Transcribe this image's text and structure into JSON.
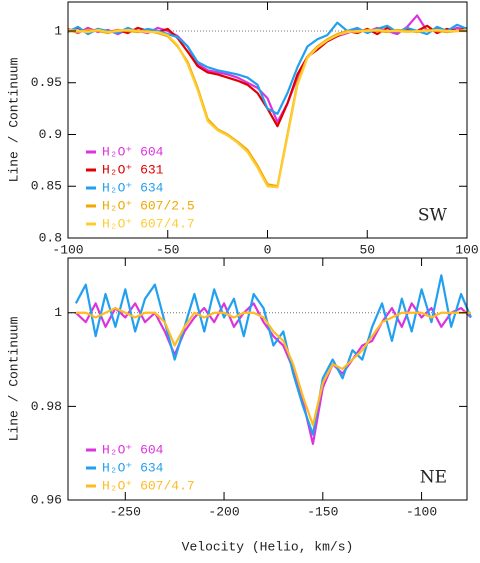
{
  "chart_data": [
    {
      "type": "line",
      "annotation": "SW",
      "ylabel": "Line / Continuum",
      "x": [
        -100,
        -95,
        -90,
        -85,
        -80,
        -75,
        -70,
        -65,
        -60,
        -55,
        -50,
        -45,
        -40,
        -35,
        -30,
        -25,
        -20,
        -15,
        -10,
        -5,
        0,
        5,
        10,
        15,
        20,
        25,
        30,
        35,
        40,
        45,
        50,
        55,
        60,
        65,
        70,
        75,
        80,
        85,
        90,
        95,
        100
      ],
      "series": [
        {
          "name": "H₂O⁺ 604",
          "color": "#dd33dd",
          "values": [
            1.002,
            0.998,
            1.003,
            0.999,
            1.001,
            0.997,
            1.002,
            1.0,
            0.998,
            1.003,
            1.0,
            0.995,
            0.985,
            0.968,
            0.962,
            0.96,
            0.958,
            0.955,
            0.95,
            0.945,
            0.935,
            0.912,
            0.93,
            0.955,
            0.975,
            0.985,
            0.99,
            0.995,
            0.998,
            1.002,
            0.999,
            1.003,
            1.0,
            0.997,
            1.004,
            1.015,
            1.0,
            1.002,
            0.999,
            1.003,
            1.001
          ]
        },
        {
          "name": "H₂O⁺ 631",
          "color": "#e00000",
          "values": [
            1.0,
            1.003,
            0.998,
            1.002,
            0.999,
            1.001,
            0.998,
            1.003,
            1.0,
            0.999,
            1.002,
            0.993,
            0.98,
            0.966,
            0.96,
            0.958,
            0.955,
            0.952,
            0.948,
            0.94,
            0.925,
            0.908,
            0.93,
            0.958,
            0.975,
            0.982,
            0.99,
            0.995,
            1.0,
            0.998,
            1.002,
            0.997,
            1.003,
            0.999,
            1.001,
            1.0,
            1.005,
            0.998,
            1.002,
            1.0,
            1.003
          ]
        },
        {
          "name": "H₂O⁺ 634",
          "color": "#22a0f0",
          "values": [
            0.999,
            1.004,
            0.997,
            1.002,
            1.0,
            0.998,
            1.003,
            0.999,
            1.002,
            1.0,
            0.997,
            0.994,
            0.985,
            0.97,
            0.965,
            0.962,
            0.96,
            0.958,
            0.955,
            0.948,
            0.925,
            0.92,
            0.94,
            0.965,
            0.985,
            0.992,
            0.996,
            1.008,
            1.0,
            1.003,
            0.998,
            1.002,
            1.005,
            0.999,
            1.003,
            1.0,
            0.997,
            1.004,
            1.0,
            1.006,
            1.002
          ]
        },
        {
          "name": "H₂O⁺ 607/2.5",
          "color": "#f0a800",
          "values": [
            1.0,
            0.999,
            1.001,
            1.0,
            0.998,
            1.001,
            1.0,
            0.999,
            1.0,
            0.998,
            0.995,
            0.985,
            0.97,
            0.945,
            0.915,
            0.905,
            0.9,
            0.893,
            0.885,
            0.87,
            0.852,
            0.85,
            0.9,
            0.95,
            0.975,
            0.985,
            0.992,
            0.997,
            1.0,
            0.999,
            1.001,
            1.0,
            0.999,
            1.001,
            1.0,
            0.999,
            1.001,
            1.0,
            0.999,
            1.0,
            1.0
          ]
        },
        {
          "name": "H₂O⁺ 607/4.7",
          "color": "#ffcc33",
          "values": [
            1.001,
            1.0,
            0.999,
            1.001,
            0.999,
            1.0,
            1.001,
            1.0,
            0.999,
            0.999,
            0.996,
            0.986,
            0.968,
            0.943,
            0.913,
            0.904,
            0.899,
            0.892,
            0.883,
            0.868,
            0.85,
            0.849,
            0.898,
            0.948,
            0.974,
            0.984,
            0.991,
            0.996,
            0.999,
            1.0,
            1.0,
            1.001,
            1.0,
            1.0,
            0.999,
            1.0,
            1.0,
            1.001,
            1.0,
            1.0,
            1.001
          ]
        }
      ],
      "xlim": [
        -100,
        100
      ],
      "xticks": [
        -100,
        -50,
        0,
        50,
        100
      ],
      "ylim": [
        0.8,
        1.028
      ],
      "yticks": [
        0.8,
        0.85,
        0.9,
        0.95,
        1
      ],
      "hline": 1
    },
    {
      "type": "line",
      "annotation": "NE",
      "ylabel": "Line / Continuum",
      "xlabel": "Velocity (Helio, km/s)",
      "x": [
        -275,
        -270,
        -265,
        -260,
        -255,
        -250,
        -245,
        -240,
        -235,
        -230,
        -225,
        -220,
        -215,
        -210,
        -205,
        -200,
        -195,
        -190,
        -185,
        -180,
        -175,
        -170,
        -165,
        -160,
        -155,
        -150,
        -145,
        -140,
        -135,
        -130,
        -125,
        -120,
        -115,
        -110,
        -105,
        -100,
        -95,
        -90,
        -85,
        -80,
        -75
      ],
      "series": [
        {
          "name": "H₂O⁺ 604",
          "color": "#dd33dd",
          "values": [
            1.0,
            0.998,
            1.002,
            0.997,
            1.001,
            0.999,
            1.002,
            0.998,
            1.0,
            0.996,
            0.991,
            0.996,
            0.999,
            1.001,
            0.998,
            1.002,
            0.997,
            1.0,
            1.002,
            0.998,
            0.995,
            0.993,
            0.988,
            0.981,
            0.972,
            0.984,
            0.989,
            0.987,
            0.99,
            0.993,
            0.994,
            0.998,
            1.001,
            0.997,
            1.002,
            0.999,
            1.001,
            0.997,
            1.0,
            1.001,
            0.999
          ]
        },
        {
          "name": "H₂O⁺ 634",
          "color": "#22a0f0",
          "values": [
            1.002,
            1.006,
            0.995,
            1.004,
            0.997,
            1.005,
            0.996,
            1.003,
            1.006,
            0.998,
            0.99,
            0.997,
            1.004,
            0.996,
            1.005,
            0.999,
            1.003,
            0.995,
            1.004,
            1.001,
            0.993,
            0.996,
            0.987,
            0.98,
            0.974,
            0.986,
            0.99,
            0.986,
            0.992,
            0.99,
            0.997,
            1.002,
            0.994,
            1.003,
            0.996,
            1.005,
            0.998,
            1.008,
            0.997,
            1.004,
            0.999
          ]
        },
        {
          "name": "H₂O⁺ 607/4.7",
          "color": "#ffbb22",
          "values": [
            1.0,
            1.0,
            0.999,
            1.0,
            1.001,
            1.0,
            0.999,
            1.0,
            1.0,
            0.998,
            0.993,
            0.997,
            1.0,
            0.999,
            1.0,
            1.0,
            0.999,
            1.0,
            1.0,
            0.999,
            0.996,
            0.994,
            0.989,
            0.982,
            0.976,
            0.985,
            0.989,
            0.988,
            0.99,
            0.992,
            0.995,
            0.998,
            0.999,
            1.0,
            1.0,
            1.0,
            0.999,
            1.0,
            1.0,
            1.0,
            1.0
          ]
        }
      ],
      "xlim": [
        -279,
        -77
      ],
      "xticks": [
        -250,
        -200,
        -150,
        -100
      ],
      "ylim": [
        0.96,
        1.0117
      ],
      "yticks": [
        0.96,
        0.98,
        1
      ],
      "hline": 1
    }
  ]
}
